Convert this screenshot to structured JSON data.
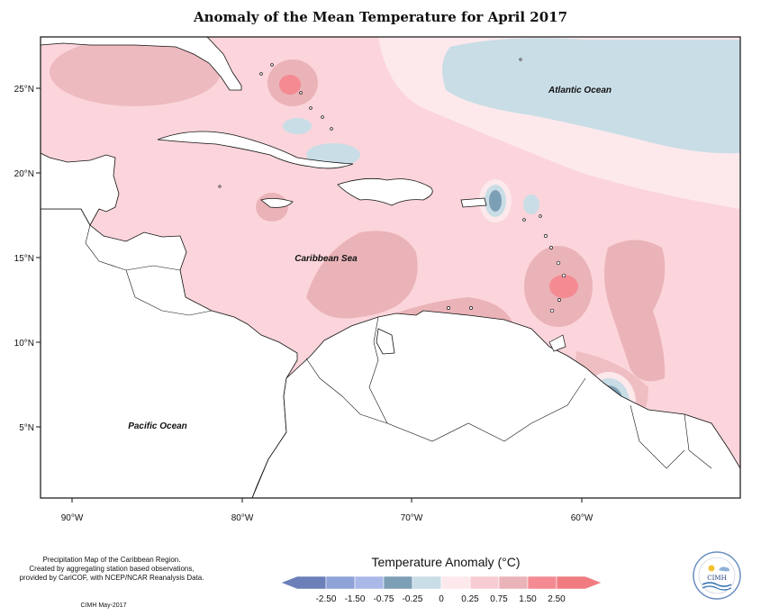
{
  "title": "Anomaly of the Mean Temperature for April 2017",
  "map": {
    "lat_ticks": [
      "25°N",
      "20°N",
      "15°N",
      "10°N",
      "5°N"
    ],
    "lon_ticks": [
      "90°W",
      "80°W",
      "70°W",
      "60°W"
    ],
    "labels": {
      "atlantic": "Atlantic Ocean",
      "caribbean": "Caribbean Sea",
      "pacific": "Pacific Ocean"
    }
  },
  "credit": {
    "line1": "Precipitation Map of the Caribbean Region.",
    "line2": "Created by aggregating station based observations,",
    "line3": "provided by CariCOF, with NCEP/NCAR Reanalysis Data.",
    "stamp": "CIMH May-2017"
  },
  "legend": {
    "title": "Temperature Anomaly (°C)",
    "ticks": [
      "-2.50",
      "-1.50",
      "-0.75",
      "-0.25",
      "0",
      "0.25",
      "0.75",
      "1.50",
      "2.50"
    ],
    "colors": [
      "#6b7fb8",
      "#8ea2d8",
      "#aab8e8",
      "#7d9fb5",
      "#c9dde6",
      "#fde9ec",
      "#f7cdd3",
      "#eab3b8",
      "#f48a92",
      "#f07c82"
    ]
  },
  "logo_text": "CIMH",
  "colors": {
    "background_anomaly": "#fbd5db",
    "warm_patch": "#eab3b8",
    "hot_spot": "#f07c82",
    "cool_patch": "#c9dde6",
    "cold_spot": "#7d9fb5"
  }
}
